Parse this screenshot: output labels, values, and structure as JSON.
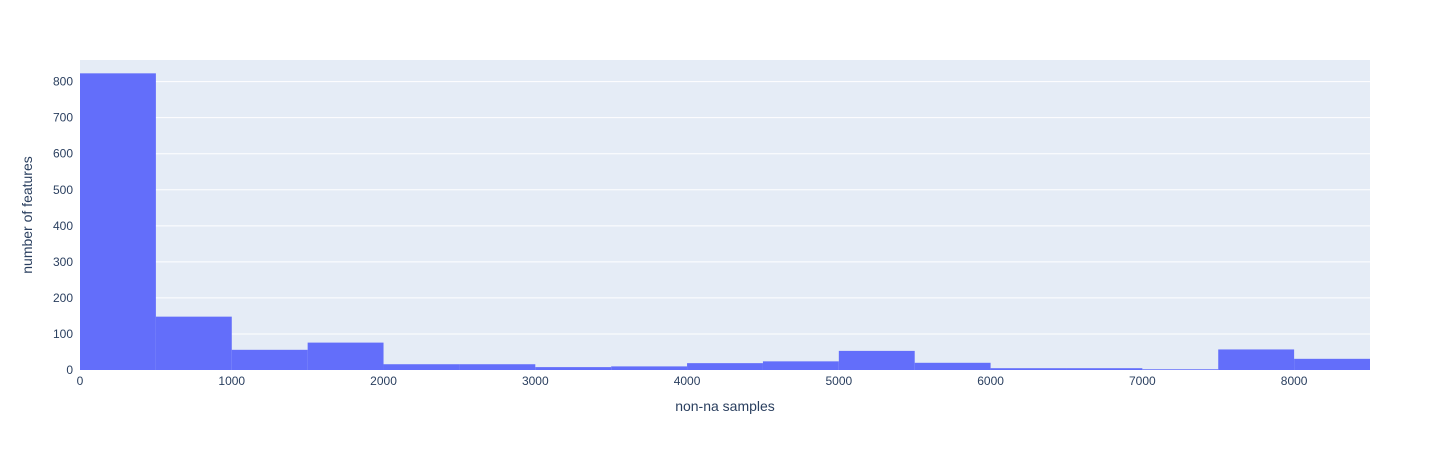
{
  "chart_data": {
    "type": "bar",
    "title": "",
    "xlabel": "non-na samples",
    "ylabel": "number of features",
    "xlim": [
      0,
      8500
    ],
    "ylim": [
      0,
      860
    ],
    "bin_width": 500,
    "x_ticks": [
      0,
      1000,
      2000,
      3000,
      4000,
      5000,
      6000,
      7000,
      8000
    ],
    "x_tick_labels": [
      "0",
      "1000",
      "2000",
      "3000",
      "4000",
      "5000",
      "6000",
      "7000",
      "8000"
    ],
    "y_ticks": [
      0,
      100,
      200,
      300,
      400,
      500,
      600,
      700,
      800
    ],
    "y_tick_labels": [
      "0",
      "100",
      "200",
      "300",
      "400",
      "500",
      "600",
      "700",
      "800"
    ],
    "grid": true,
    "legend": "none",
    "series": [
      {
        "color": "#636efa",
        "bins": [
          {
            "x0": 0,
            "x1": 500,
            "y": 823
          },
          {
            "x0": 500,
            "x1": 1000,
            "y": 148
          },
          {
            "x0": 1000,
            "x1": 1500,
            "y": 56
          },
          {
            "x0": 1500,
            "x1": 2000,
            "y": 76
          },
          {
            "x0": 2000,
            "x1": 2500,
            "y": 16
          },
          {
            "x0": 2500,
            "x1": 3000,
            "y": 16
          },
          {
            "x0": 3000,
            "x1": 3500,
            "y": 8
          },
          {
            "x0": 3500,
            "x1": 4000,
            "y": 10
          },
          {
            "x0": 4000,
            "x1": 4500,
            "y": 19
          },
          {
            "x0": 4500,
            "x1": 5000,
            "y": 24
          },
          {
            "x0": 5000,
            "x1": 5500,
            "y": 53
          },
          {
            "x0": 5500,
            "x1": 6000,
            "y": 20
          },
          {
            "x0": 6000,
            "x1": 6500,
            "y": 5
          },
          {
            "x0": 6500,
            "x1": 7000,
            "y": 5
          },
          {
            "x0": 7000,
            "x1": 7500,
            "y": 2
          },
          {
            "x0": 7500,
            "x1": 8000,
            "y": 57
          },
          {
            "x0": 8000,
            "x1": 8500,
            "y": 31
          }
        ]
      }
    ],
    "plot_bg": "#e5ecf6",
    "grid_color": "#ffffff",
    "text_color": "#2a3f5f"
  }
}
